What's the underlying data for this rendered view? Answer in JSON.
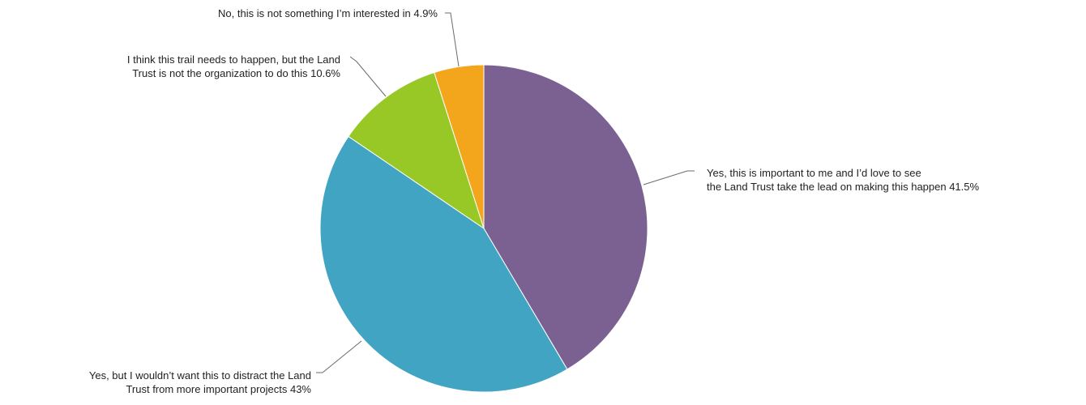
{
  "chart_data": {
    "type": "pie",
    "title": "",
    "start_angle_deg": 0,
    "direction": "clockwise",
    "slices": [
      {
        "label_lines": [
          "Yes, this is important to me and I’d love to see",
          "the Land Trust take the lead on making this happen 41.5%"
        ],
        "value": 41.5,
        "color": "#7B6192"
      },
      {
        "label_lines": [
          "Yes, but I wouldn’t want this to distract the Land",
          "Trust from more important projects 43%"
        ],
        "value": 43,
        "color": "#41A4C2"
      },
      {
        "label_lines": [
          "I think this trail needs to happen, but the Land",
          "Trust is not the organization to do this 10.6%"
        ],
        "value": 10.6,
        "color": "#98C825"
      },
      {
        "label_lines": [
          "No, this is not something I’m interested in 4.9%"
        ],
        "value": 4.9,
        "color": "#F3A51B"
      }
    ]
  }
}
